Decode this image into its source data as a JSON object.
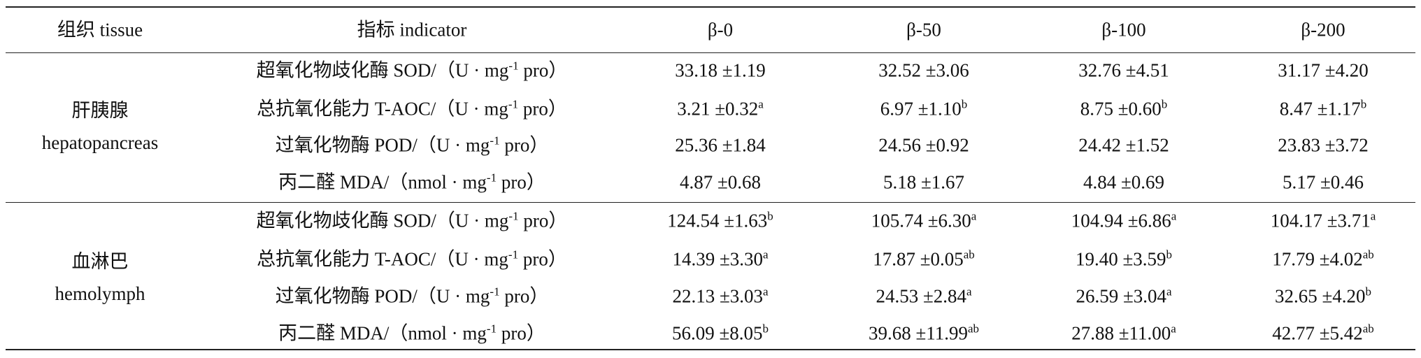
{
  "table": {
    "header": [
      "组织 tissue",
      "指标 indicator",
      "β-0",
      "β-50",
      "β-100",
      "β-200"
    ],
    "groups": [
      {
        "tissue": [
          "肝胰腺",
          "hepatopancreas"
        ],
        "rows": [
          {
            "indicator": {
              "pre": "超氧化物歧化酶 SOD/（U · mg",
              "sup": "-1",
              "post": "pro）"
            },
            "cells": [
              {
                "value": "33.18 ±1.19"
              },
              {
                "value": "32.52 ±3.06"
              },
              {
                "value": "32.76 ±4.51"
              },
              {
                "value": "31.17 ±4.20"
              }
            ]
          },
          {
            "indicator": {
              "pre": "总抗氧化能力 T-AOC/（U · mg",
              "sup": "-1",
              "post": "pro）"
            },
            "cells": [
              {
                "value": "3.21 ±0.32",
                "sup": "a"
              },
              {
                "value": "6.97 ±1.10",
                "sup": "b"
              },
              {
                "value": "8.75 ±0.60",
                "sup": "b"
              },
              {
                "value": "8.47 ±1.17",
                "sup": "b"
              }
            ]
          },
          {
            "indicator": {
              "pre": "过氧化物酶 POD/（U · mg",
              "sup": "-1",
              "post": "pro）"
            },
            "cells": [
              {
                "value": "25.36 ±1.84"
              },
              {
                "value": "24.56 ±0.92"
              },
              {
                "value": "24.42 ±1.52"
              },
              {
                "value": "23.83 ±3.72"
              }
            ]
          },
          {
            "indicator": {
              "pre": "丙二醛 MDA/（nmol · mg",
              "sup": "-1",
              "post": "pro）"
            },
            "cells": [
              {
                "value": "4.87 ±0.68"
              },
              {
                "value": "5.18 ±1.67"
              },
              {
                "value": "4.84 ±0.69"
              },
              {
                "value": "5.17 ±0.46"
              }
            ]
          }
        ]
      },
      {
        "tissue": [
          "血淋巴",
          "hemolymph"
        ],
        "rows": [
          {
            "indicator": {
              "pre": "超氧化物歧化酶 SOD/（U · mg",
              "sup": "-1",
              "post": "pro）"
            },
            "cells": [
              {
                "value": "124.54 ±1.63",
                "sup": "b"
              },
              {
                "value": "105.74 ±6.30",
                "sup": "a"
              },
              {
                "value": "104.94 ±6.86",
                "sup": "a"
              },
              {
                "value": "104.17 ±3.71",
                "sup": "a"
              }
            ]
          },
          {
            "indicator": {
              "pre": "总抗氧化能力 T-AOC/（U · mg",
              "sup": "-1",
              "post": "pro）"
            },
            "cells": [
              {
                "value": "14.39 ±3.30",
                "sup": "a"
              },
              {
                "value": "17.87 ±0.05",
                "sup": "ab"
              },
              {
                "value": "19.40 ±3.59",
                "sup": "b"
              },
              {
                "value": "17.79 ±4.02",
                "sup": "ab"
              }
            ]
          },
          {
            "indicator": {
              "pre": "过氧化物酶 POD/（U · mg",
              "sup": "-1",
              "post": "pro）"
            },
            "cells": [
              {
                "value": "22.13 ±3.03",
                "sup": "a"
              },
              {
                "value": "24.53 ±2.84",
                "sup": "a"
              },
              {
                "value": "26.59 ±3.04",
                "sup": "a"
              },
              {
                "value": "32.65 ±4.20",
                "sup": "b"
              }
            ]
          },
          {
            "indicator": {
              "pre": "丙二醛 MDA/（nmol · mg",
              "sup": "-1",
              "post": "pro）"
            },
            "cells": [
              {
                "value": "56.09 ±8.05",
                "sup": "b"
              },
              {
                "value": "39.68 ±11.99",
                "sup": "ab"
              },
              {
                "value": "27.88 ±11.00",
                "sup": "a"
              },
              {
                "value": "42.77 ±5.42",
                "sup": "ab"
              }
            ]
          }
        ]
      }
    ]
  }
}
